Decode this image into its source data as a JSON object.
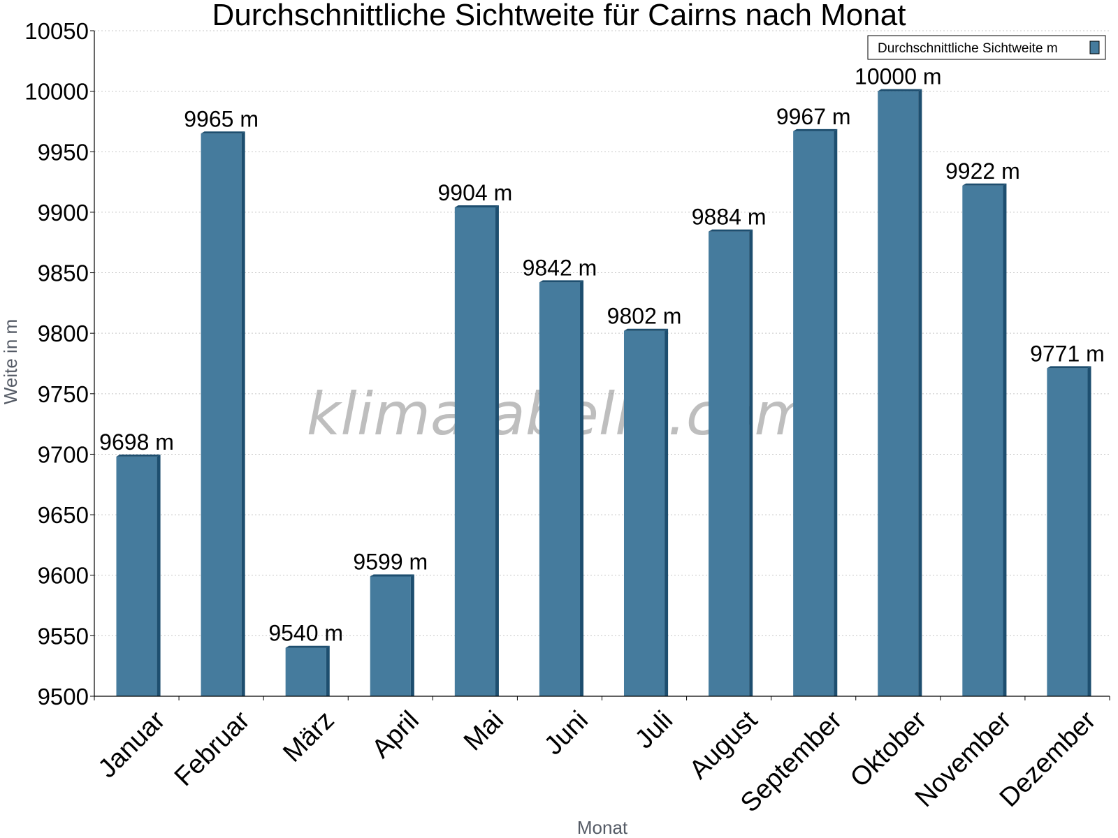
{
  "chart_data": {
    "type": "bar",
    "title": "Durchschnittliche Sichtweite für Cairns nach Monat",
    "xlabel": "Monat",
    "ylabel": "Weite in m",
    "categories": [
      "Januar",
      "Februar",
      "März",
      "April",
      "Mai",
      "Juni",
      "Juli",
      "August",
      "September",
      "Oktober",
      "November",
      "Dezember"
    ],
    "series": [
      {
        "name": "Durchschnittliche Sichtweite m",
        "values": [
          9698,
          9965,
          9540,
          9599,
          9904,
          9842,
          9802,
          9884,
          9967,
          10000,
          9922,
          9771
        ],
        "color": "#457b9d",
        "edge_color": "#1d4e6f"
      }
    ],
    "data_labels": [
      "9698 m",
      "9965 m",
      "9540 m",
      "9599 m",
      "9904 m",
      "9842 m",
      "9802 m",
      "9884 m",
      "9967 m",
      "10000 m",
      "9922 m",
      "9771 m"
    ],
    "yticks": [
      "9500",
      "9550",
      "9600",
      "9650",
      "9700",
      "9750",
      "9800",
      "9850",
      "9900",
      "9950",
      "10000",
      "10050"
    ],
    "ylim": [
      9500,
      10050
    ],
    "grid": true,
    "grid_style": "dotted",
    "legend_position": "top-right",
    "watermark": "klimatabelle.com"
  }
}
